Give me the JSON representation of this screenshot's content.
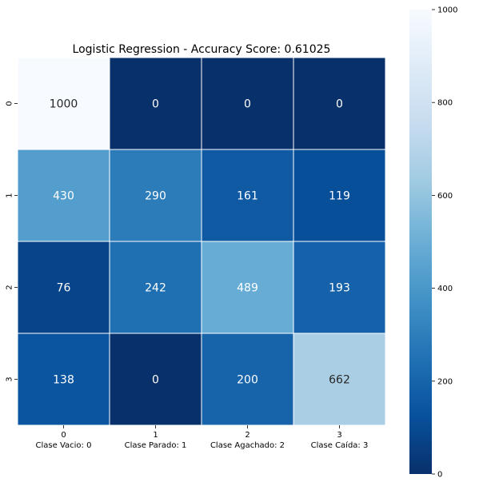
{
  "chart_data": {
    "type": "heatmap",
    "title": "Logistic Regression - Accuracy Score: 0.61025",
    "x_categories": [
      "0\nClase Vacio: 0",
      "1\nClase Parado: 1",
      "2\nClase Agachado: 2",
      "3\nClase Caída: 3"
    ],
    "x_tick_numbers": [
      "0",
      "1",
      "2",
      "3"
    ],
    "x_tick_names": [
      "Clase Vacio: 0",
      "Clase Parado: 1",
      "Clase Agachado: 2",
      "Clase Caída: 3"
    ],
    "y_categories": [
      "0",
      "1",
      "2",
      "3"
    ],
    "values": [
      [
        1000,
        0,
        0,
        0
      ],
      [
        430,
        290,
        161,
        119
      ],
      [
        76,
        242,
        489,
        193
      ],
      [
        138,
        0,
        200,
        662
      ]
    ],
    "colorbar": {
      "min": 0,
      "max": 1000,
      "ticks": [
        0,
        200,
        400,
        600,
        800,
        1000
      ],
      "colormap": "Blues_r",
      "low_color": "#08306b",
      "high_color": "#f7fbff"
    },
    "xlabel": "",
    "ylabel": ""
  }
}
